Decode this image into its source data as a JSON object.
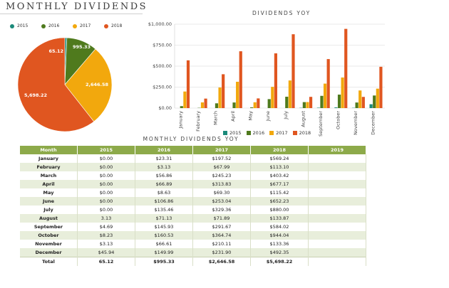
{
  "page": {
    "title": "MONTHLY DIVIDENDS"
  },
  "colors": {
    "2015": "#1b8a7a",
    "2016": "#4f7a1d",
    "2017": "#f2a80d",
    "2018": "#e05620",
    "header": "#8daa4a",
    "alt_row": "#e8eedb"
  },
  "pie_legend": [
    "2015",
    "2016",
    "2017",
    "2018"
  ],
  "bar_legend": [
    "2015",
    "2016",
    "2017",
    "2018"
  ],
  "chart_data": [
    {
      "type": "pie",
      "title": "",
      "categories": [
        "2015",
        "2016",
        "2017",
        "2018"
      ],
      "values": [
        65.12,
        995.33,
        2646.58,
        5698.22
      ],
      "labels": [
        "65.12",
        "995.33",
        "2,646.58",
        "5,698.22"
      ],
      "legend": "top-left"
    },
    {
      "type": "bar",
      "title": "DIVIDENDS YOY",
      "categories": [
        "January",
        "February",
        "March",
        "April",
        "May",
        "June",
        "July",
        "August",
        "September",
        "October",
        "November",
        "December"
      ],
      "series": [
        {
          "name": "2015",
          "values": [
            0,
            0,
            0,
            0,
            0,
            0,
            0,
            3.13,
            4.69,
            8.23,
            3.13,
            45.94
          ]
        },
        {
          "name": "2016",
          "values": [
            23.31,
            3.13,
            56.86,
            66.89,
            8.63,
            106.86,
            135.46,
            71.13,
            145.93,
            160.53,
            66.61,
            149.99
          ]
        },
        {
          "name": "2017",
          "values": [
            197.52,
            67.99,
            245.23,
            313.83,
            69.3,
            253.04,
            329.36,
            71.89,
            291.67,
            364.74,
            210.11,
            231.9
          ]
        },
        {
          "name": "2018",
          "values": [
            569.24,
            113.1,
            403.42,
            677.17,
            115.42,
            652.23,
            880.0,
            133.87,
            584.02,
            944.04,
            133.36,
            492.35
          ]
        }
      ],
      "yticks": [
        "$0.00",
        "$250.00",
        "$500.00",
        "$750.00",
        "$1,000.00"
      ],
      "ylim": [
        0,
        1000
      ],
      "grid": true,
      "legend": "bottom"
    },
    {
      "type": "table",
      "title": "MONTHLY DIVIDENDS YOY",
      "columns": [
        "Month",
        "2015",
        "2016",
        "2017",
        "2018",
        "2019"
      ],
      "rows": [
        [
          "January",
          "$0.00",
          "$23.31",
          "$197.52",
          "$569.24",
          ""
        ],
        [
          "February",
          "$0.00",
          "$3.13",
          "$67.99",
          "$113.10",
          ""
        ],
        [
          "March",
          "$0.00",
          "$56.86",
          "$245.23",
          "$403.42",
          ""
        ],
        [
          "April",
          "$0.00",
          "$66.89",
          "$313.83",
          "$677.17",
          ""
        ],
        [
          "May",
          "$0.00",
          "$8.63",
          "$69.30",
          "$115.42",
          ""
        ],
        [
          "June",
          "$0.00",
          "$106.86",
          "$253.04",
          "$652.23",
          ""
        ],
        [
          "July",
          "$0.00",
          "$135.46",
          "$329.36",
          "$880.00",
          ""
        ],
        [
          "August",
          "3.13",
          "$71.13",
          "$71.89",
          "$133.87",
          ""
        ],
        [
          "September",
          "$4.69",
          "$145.93",
          "$291.67",
          "$584.02",
          ""
        ],
        [
          "October",
          "$8.23",
          "$160.53",
          "$364.74",
          "$944.04",
          ""
        ],
        [
          "November",
          "$3.13",
          "$66.61",
          "$210.11",
          "$133.36",
          ""
        ],
        [
          "December",
          "$45.94",
          "$149.99",
          "$231.90",
          "$492.35",
          ""
        ]
      ],
      "total": [
        "Total",
        "65.12",
        "$995.33",
        "$2,646.58",
        "$5,698.22",
        ""
      ]
    }
  ]
}
